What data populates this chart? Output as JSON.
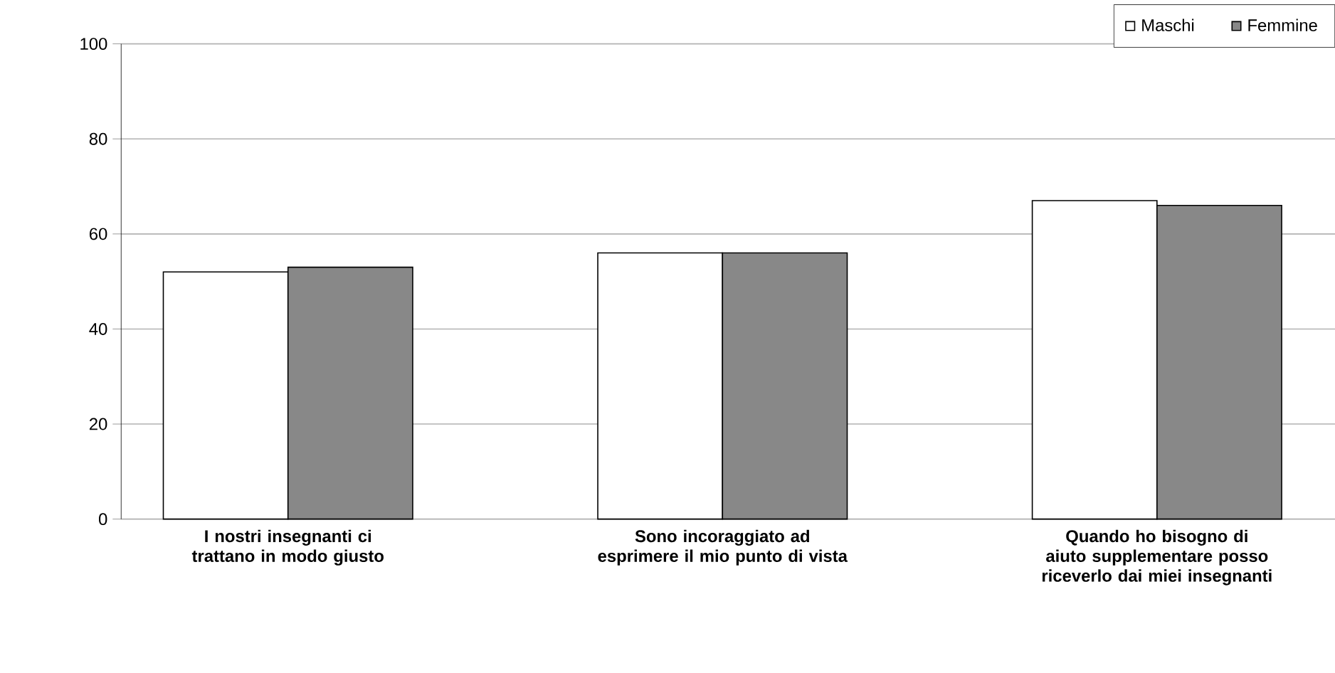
{
  "chart_data": {
    "type": "bar",
    "categories": [
      "I nostri insegnanti ci trattano in modo giusto",
      "Sono incoraggiato ad esprimere il mio punto di vista",
      "Quando ho bisogno di aiuto supplementare posso riceverlo dai miei insegnanti"
    ],
    "series": [
      {
        "name": "Maschi",
        "color": "#ffffff",
        "values": [
          52,
          56,
          67
        ]
      },
      {
        "name": "Femmine",
        "color": "#888888",
        "values": [
          53,
          56,
          66
        ]
      }
    ],
    "ylim": [
      0,
      100
    ],
    "yticks": [
      0,
      20,
      40,
      60,
      80,
      100
    ],
    "grid": "y",
    "legend": "top right"
  }
}
